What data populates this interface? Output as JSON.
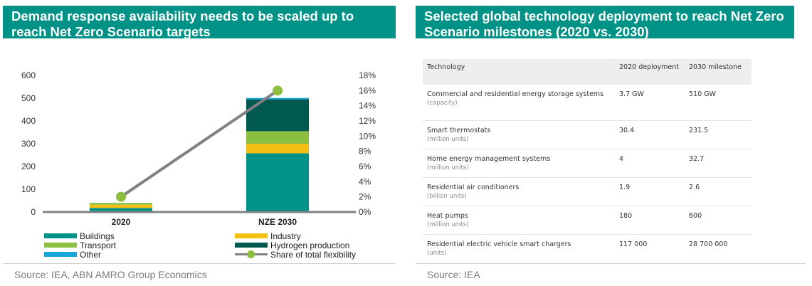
{
  "left_panel": {
    "title": "Demand response availability needs to be scaled up to reach Net Zero Scenario targets",
    "source": "Source: IEA, ABN AMRO Group Economics"
  },
  "right_panel": {
    "title": "Selected global technology deployment to reach Net Zero Scenario milestones (2020 vs. 2030)",
    "source": "Source: IEA",
    "table": {
      "headers": [
        "Technology",
        "2020 deployment",
        "2030 milestone"
      ],
      "rows": [
        {
          "technology": "Commercial and residential energy storage systems",
          "unit": "(capacity)",
          "v2020": "3.7 GW",
          "v2030": "510 GW"
        },
        {
          "technology": "Smart thermostats",
          "unit": "(million units)",
          "v2020": "30.4",
          "v2030": "231.5"
        },
        {
          "technology": "Home energy management systems",
          "unit": "(million units)",
          "v2020": "4",
          "v2030": "32.7"
        },
        {
          "technology": "Residential air conditioners",
          "unit": "(billion units)",
          "v2020": "1.9",
          "v2030": "2.6"
        },
        {
          "technology": "Heat pumps",
          "unit": "(million units)",
          "v2020": "180",
          "v2030": "600"
        },
        {
          "technology": "Residential electric vehicle smart chargers",
          "unit": "(units)",
          "v2020": "117 000",
          "v2030": "28 700 000"
        }
      ]
    }
  },
  "chart_data": {
    "type": "bar",
    "stacked": true,
    "categories": [
      "2020",
      "NZE 2030"
    ],
    "series": [
      {
        "name": "Buildings",
        "color": "#009286",
        "values": [
          18,
          258
        ]
      },
      {
        "name": "Industry",
        "color": "#f2bf12",
        "values": [
          14,
          42
        ]
      },
      {
        "name": "Transport",
        "color": "#8cbe3f",
        "values": [
          8,
          55
        ]
      },
      {
        "name": "Hydrogen production",
        "color": "#00594f",
        "values": [
          0,
          140
        ]
      },
      {
        "name": "Other",
        "color": "#16a6d9",
        "values": [
          0,
          6
        ]
      }
    ],
    "line_series": {
      "name": "Share of total flexibility",
      "color": "#7f8183",
      "marker_color": "#8cbe3f",
      "values": [
        2,
        16
      ],
      "axis": "right"
    },
    "yaxis_left": {
      "ticks": [
        "0",
        "100",
        "200",
        "300",
        "400",
        "500",
        "600"
      ],
      "ylim": [
        0,
        600
      ]
    },
    "yaxis_right": {
      "ticks": [
        "0%",
        "2%",
        "4%",
        "6%",
        "8%",
        "10%",
        "12%",
        "14%",
        "16%",
        "18%"
      ],
      "ylim": [
        0,
        18
      ]
    },
    "grid": false,
    "legend_position": "bottom"
  }
}
